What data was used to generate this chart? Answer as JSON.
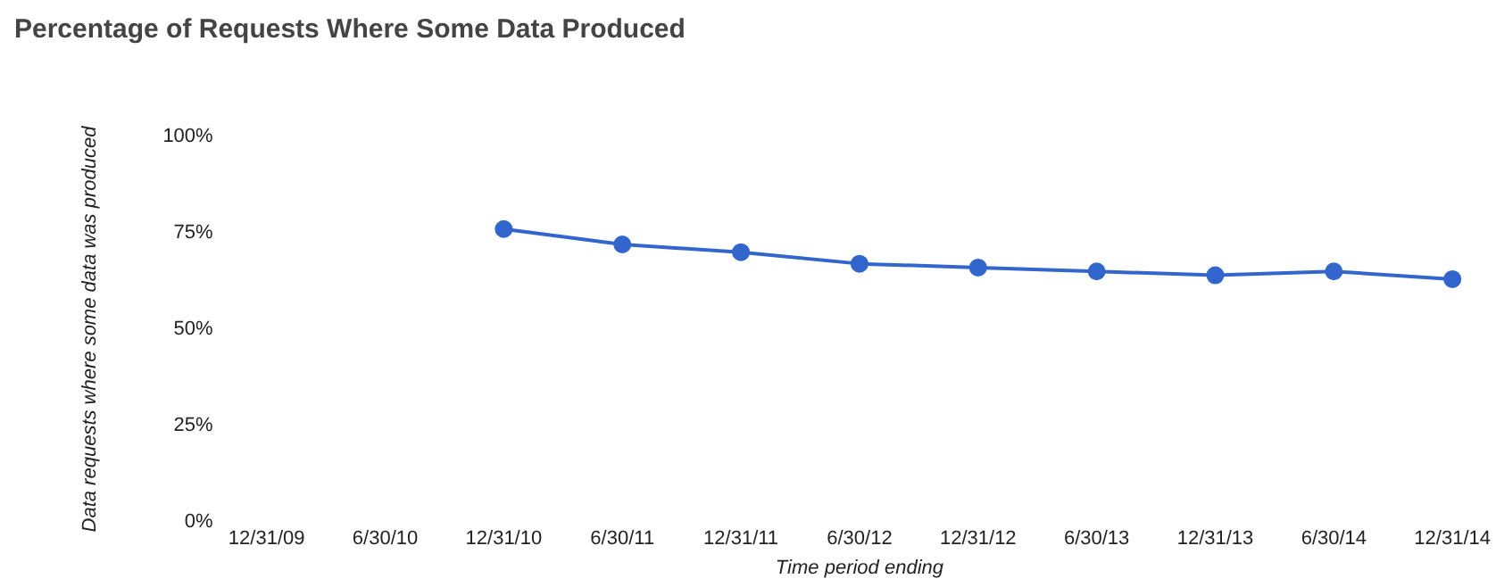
{
  "chart_data": {
    "type": "line",
    "title": "Percentage of Requests Where Some Data Produced",
    "xlabel": "Time period ending",
    "ylabel": "Data requests where some data was produced",
    "categories": [
      "12/31/09",
      "6/30/10",
      "12/31/10",
      "6/30/11",
      "12/31/11",
      "6/30/12",
      "12/31/12",
      "6/30/13",
      "12/31/13",
      "6/30/14",
      "12/31/14"
    ],
    "series": [
      {
        "color": "#3366cc",
        "values": [
          null,
          null,
          76,
          72,
          70,
          67,
          66,
          65,
          64,
          65,
          63
        ]
      }
    ],
    "ylim": [
      0,
      100
    ],
    "yticks": [
      {
        "value": 0,
        "label": "0%"
      },
      {
        "value": 25,
        "label": "25%"
      },
      {
        "value": 50,
        "label": "50%"
      },
      {
        "value": 75,
        "label": "75%"
      },
      {
        "value": 100,
        "label": "100%"
      }
    ],
    "grid": false,
    "legend": false,
    "marker": "circle",
    "line_style": "solid"
  }
}
